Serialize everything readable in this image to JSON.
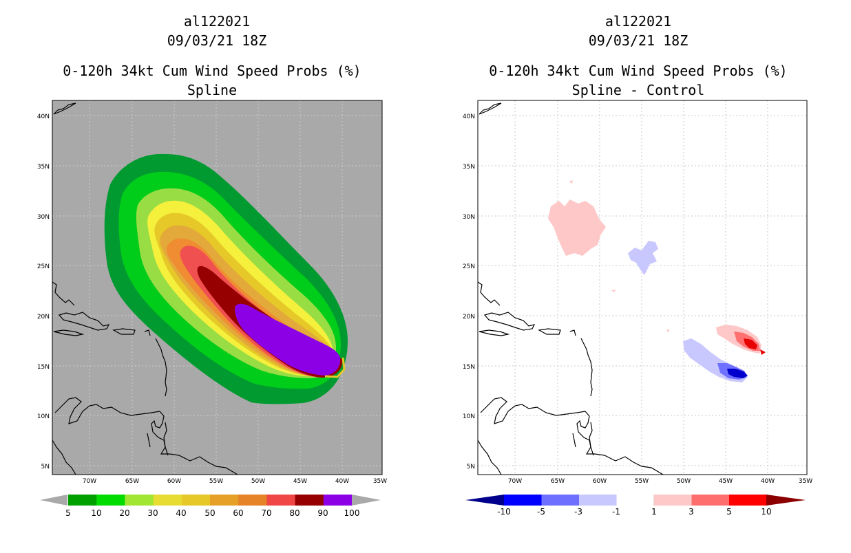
{
  "left": {
    "storm": "al122021",
    "datetime": "09/03/21 18Z",
    "title": "0-120h 34kt Cum Wind Speed Probs (%)",
    "subtitle": "Spline",
    "lat_labels": [
      "5N",
      "10N",
      "15N",
      "20N",
      "25N",
      "30N",
      "35N",
      "40N"
    ],
    "lon_labels": [
      "70W",
      "65W",
      "60W",
      "55W",
      "50W",
      "45W",
      "40W",
      "35W"
    ],
    "colorbar_labels": [
      "5",
      "10",
      "20",
      "30",
      "40",
      "50",
      "60",
      "70",
      "80",
      "90",
      "100"
    ],
    "colorbar_colors": [
      "#00a000",
      "#00dc00",
      "#a0e632",
      "#e6dc32",
      "#e6c828",
      "#e6a028",
      "#e68228",
      "#f04646",
      "#960000",
      "#8c00e6"
    ],
    "colors": {
      "background": "#a9a9a9",
      "c5": "#009a30",
      "c10": "#00cc1a",
      "c20": "#99dd44",
      "c30": "#f5f03c",
      "c40": "#e6c828",
      "c50": "#e3a93a",
      "c60": "#f08c32",
      "c70": "#f05050",
      "c80": "#960000",
      "c90": "#8c00e6"
    }
  },
  "right": {
    "storm": "al122021",
    "datetime": "09/03/21 18Z",
    "title": "0-120h 34kt Cum Wind Speed Probs (%)",
    "subtitle": "Spline - Control",
    "lat_labels": [
      "5N",
      "10N",
      "15N",
      "20N",
      "25N",
      "30N",
      "35N",
      "40N"
    ],
    "lon_labels": [
      "70W",
      "65W",
      "60W",
      "55W",
      "50W",
      "45W",
      "40W",
      "35W"
    ],
    "colorbar_labels": [
      "-10",
      "-5",
      "-3",
      "-1",
      "1",
      "3",
      "5",
      "10"
    ],
    "colorbar_colors": [
      "#0000dc",
      "#0000ff",
      "#6e6eff",
      "#c8c8ff",
      "#ffffff",
      "#ffc8c8",
      "#ff6e6e",
      "#ff0000"
    ],
    "colors": {
      "background": "#ffffff",
      "pos_light": "#ffc8c8",
      "pos_mid": "#ff7070",
      "pos_strong": "#e60000",
      "neg_light": "#c8c8ff",
      "neg_mid": "#7070ff",
      "neg_strong": "#0000cc",
      "grid": "#c8c8c8"
    }
  }
}
